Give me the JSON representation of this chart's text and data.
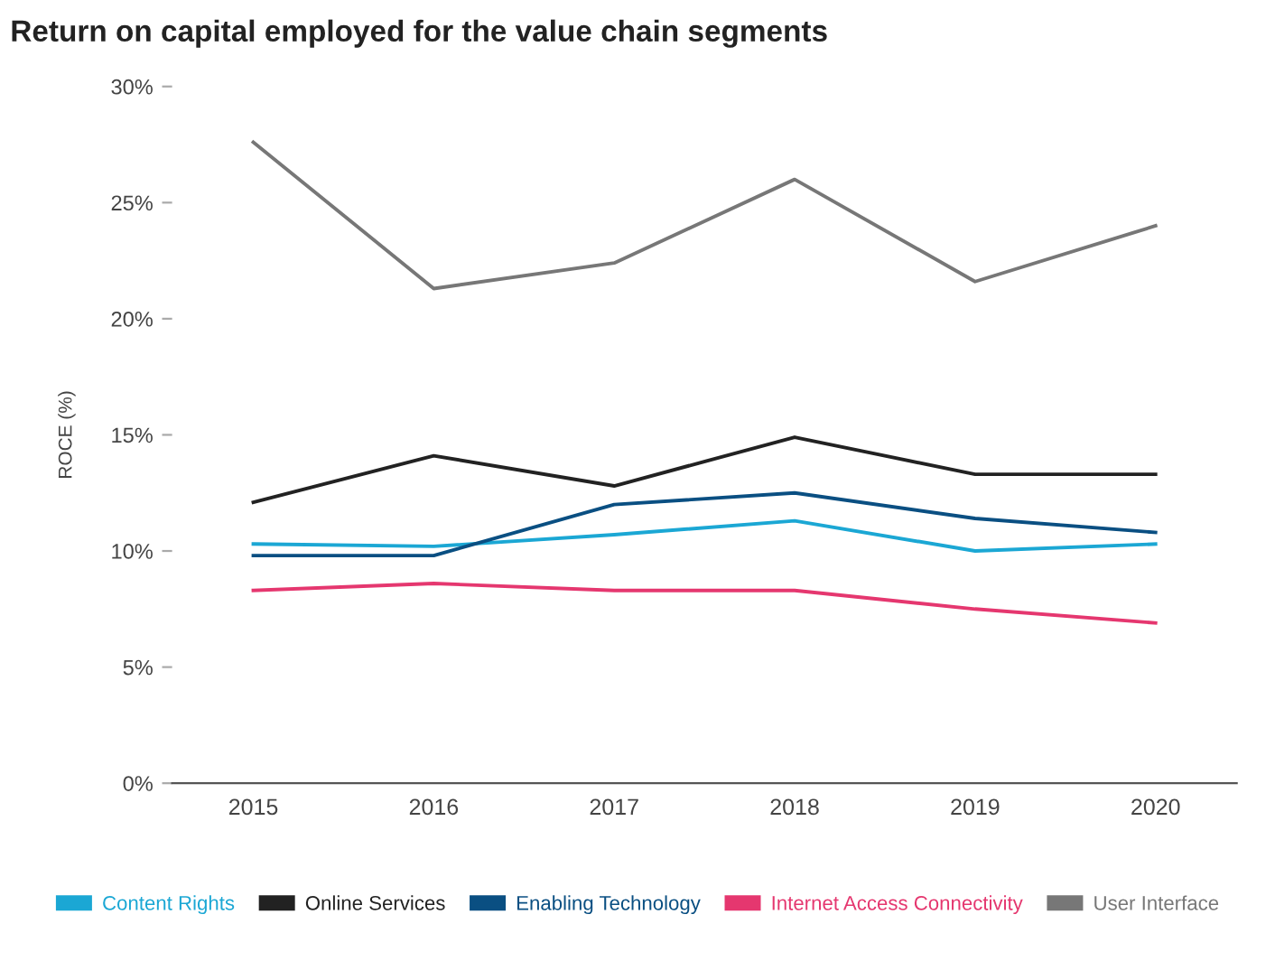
{
  "chart_data": {
    "type": "line",
    "title": "Return on capital employed for the value chain segments",
    "ylabel": "ROCE (%)",
    "categories": [
      "2015",
      "2016",
      "2017",
      "2018",
      "2019",
      "2020"
    ],
    "series": [
      {
        "name": "Content Rights",
        "color": "#1ba7d4",
        "values": [
          10.3,
          10.2,
          10.7,
          11.3,
          10.0,
          10.3
        ]
      },
      {
        "name": "Online Services",
        "color": "#222222",
        "values": [
          12.1,
          14.1,
          12.8,
          14.9,
          13.3,
          13.3
        ]
      },
      {
        "name": "Enabling Technology",
        "color": "#0a4f82",
        "values": [
          9.8,
          9.8,
          12.0,
          12.5,
          11.4,
          10.8
        ]
      },
      {
        "name": "Internet Access Connectivity",
        "color": "#e5376f",
        "values": [
          8.3,
          8.6,
          8.3,
          8.3,
          7.5,
          6.9
        ]
      },
      {
        "name": "User Interface",
        "color": "#777777",
        "values": [
          27.6,
          21.3,
          22.4,
          26.0,
          21.6,
          24.0
        ]
      }
    ],
    "ylim": [
      0,
      30
    ],
    "yticks": [
      {
        "value": 0,
        "label": "0%"
      },
      {
        "value": 5,
        "label": "5%"
      },
      {
        "value": 10,
        "label": "10%"
      },
      {
        "value": 15,
        "label": "15%"
      },
      {
        "value": 20,
        "label": "20%"
      },
      {
        "value": 25,
        "label": "25%"
      },
      {
        "value": 30,
        "label": "30%"
      }
    ],
    "grid": false,
    "legend": "bottom",
    "marker": "none",
    "line_style": "solid"
  }
}
